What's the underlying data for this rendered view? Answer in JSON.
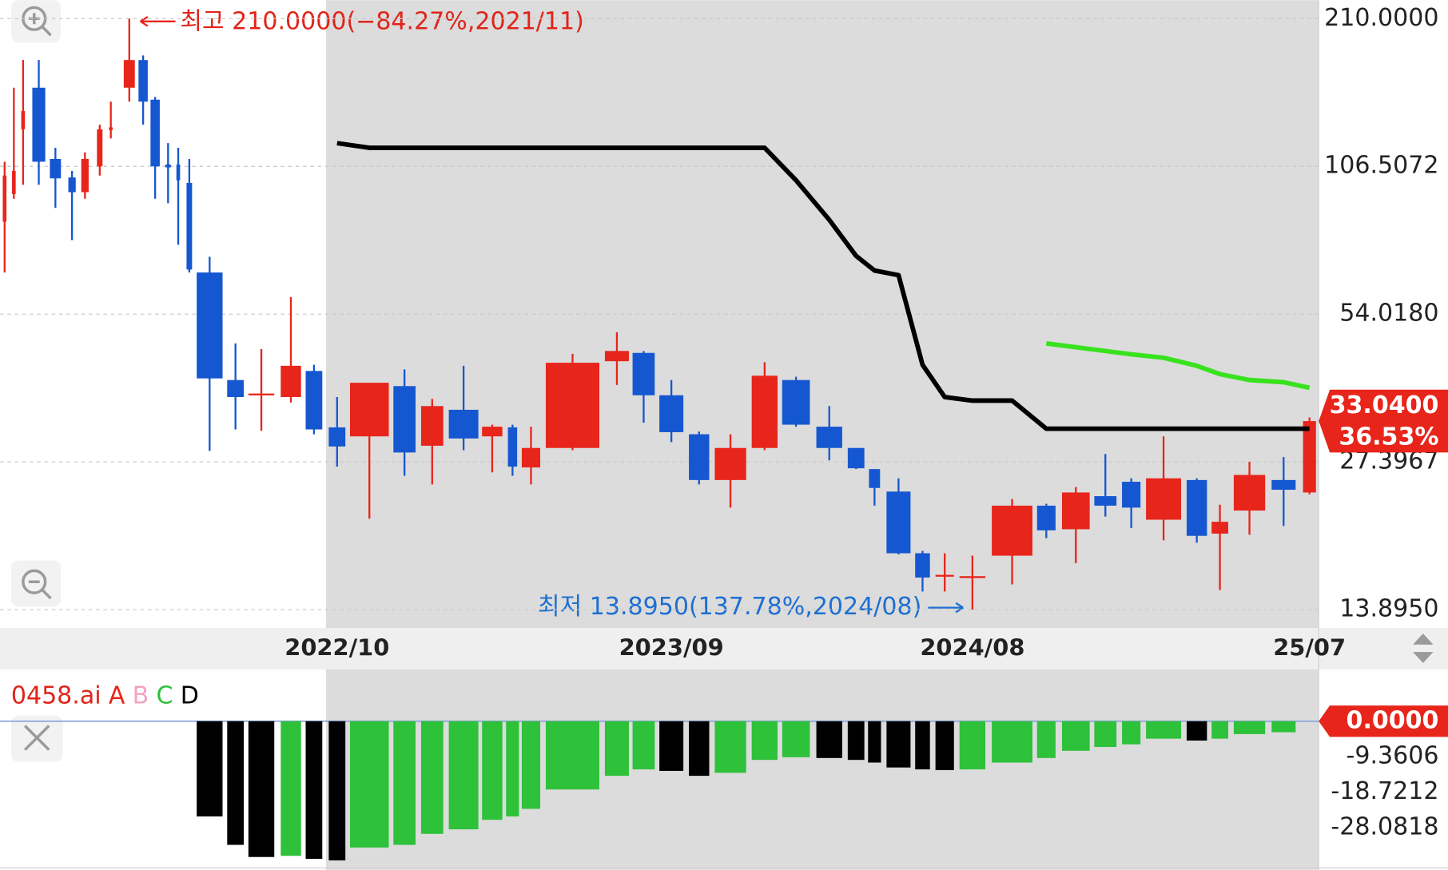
{
  "chart_data": [
    {
      "type": "candlestick",
      "categories": [
        null,
        null,
        null,
        null,
        null,
        null,
        null,
        null,
        null,
        null,
        null,
        null,
        null,
        null,
        null,
        null,
        null,
        null,
        null,
        null,
        "2022/10",
        null,
        null,
        null,
        null,
        null,
        null,
        null,
        null,
        null,
        null,
        "2023/09",
        null,
        null,
        null,
        null,
        null,
        null,
        null,
        null,
        null,
        null,
        "2024/08",
        null,
        null,
        null,
        null,
        null,
        null,
        null,
        null,
        null,
        null,
        "25/07"
      ],
      "open": [
        82.6,
        93.8,
        126.3,
        152.9,
        110.2,
        101.2,
        94.6,
        106.5,
        125.8,
        152.9,
        173.6,
        144.7,
        107.4,
        107.4,
        98.7,
        65.4,
        39.9,
        37.2,
        36.9,
        41.6,
        32.1,
        30.8,
        38.8,
        29.5,
        34.8,
        30.8,
        32.1,
        26.7,
        29.2,
        43.5,
        45.2,
        37.2,
        31.1,
        25.2,
        29.2,
        39.9,
        32.2,
        29.2,
        26.5,
        23.9,
        18.0,
        16.2,
        16.1,
        17.8,
        22.4,
        20.1,
        23.4,
        25.0,
        21.0,
        25.2,
        19.7,
        21.9,
        25.2,
        23.8
      ],
      "high": [
        108.8,
        152.9,
        173.6,
        173.6,
        116.0,
        104.3,
        113.6,
        129.0,
        143.4,
        210,
        177.3,
        146.5,
        118.5,
        116.0,
        110.2,
        70.3,
        47.2,
        46.0,
        58.4,
        42.8,
        36.9,
        39.4,
        41.9,
        36.6,
        42.6,
        32.5,
        32.5,
        32.2,
        45.0,
        49.7,
        45.6,
        39.9,
        31.5,
        31.1,
        43.3,
        40.5,
        35.4,
        29.2,
        26.5,
        25.4,
        18.2,
        18.0,
        17.8,
        23.1,
        22.6,
        24.4,
        28.4,
        25.4,
        30.8,
        25.4,
        22.5,
        27.4,
        28.0,
        33.6
      ],
      "low": [
        65.4,
        91.8,
        97.9,
        97.9,
        88.0,
        75.9,
        91.8,
        102.1,
        121.1,
        143.4,
        129.0,
        91.8,
        89.9,
        74.3,
        65.4,
        28.8,
        31.8,
        31.6,
        36.0,
        31.1,
        26.8,
        21.1,
        25.7,
        24.7,
        28.9,
        26.1,
        25.7,
        24.7,
        28.9,
        39.0,
        32.8,
        30.0,
        24.7,
        22.2,
        28.9,
        32.2,
        27.6,
        26.5,
        22.4,
        17.9,
        15.1,
        15.1,
        13.895,
        15.6,
        19.3,
        17.2,
        21.3,
        20.2,
        19.1,
        18.9,
        15.2,
        19.6,
        20.4,
        23.6
      ],
      "close": [
        102.1,
        104.3,
        137.4,
        108.8,
        100.8,
        94.6,
        110.2,
        126.3,
        127.4,
        173.6,
        143.4,
        106.5,
        106.0,
        99.9,
        66.3,
        40.2,
        36.9,
        37.5,
        42.6,
        31.8,
        29.4,
        39.4,
        28.6,
        35.4,
        30.5,
        32.2,
        26.8,
        29.2,
        43.2,
        45.6,
        37.2,
        31.4,
        25.2,
        29.2,
        40.7,
        32.5,
        29.2,
        26.6,
        24.3,
        18.0,
        16.1,
        16.3,
        16.2,
        22.4,
        20.0,
        23.8,
        22.4,
        22.2,
        25.4,
        19.5,
        20.8,
        25.8,
        24.1,
        33.04
      ],
      "up_color": "#e8251b",
      "down_color": "#1557d0",
      "overlays": [
        {
          "color": "#000000",
          "values": [
            null,
            null,
            null,
            null,
            null,
            null,
            null,
            null,
            null,
            null,
            null,
            null,
            null,
            null,
            null,
            null,
            null,
            null,
            null,
            null,
            118.5,
            116.0,
            116.0,
            116.0,
            116.0,
            116.0,
            116.0,
            116.0,
            116.0,
            116.0,
            116.0,
            116.0,
            116.0,
            116.0,
            116.0,
            99.9,
            83.3,
            70.6,
            66.0,
            64.6,
            42.8,
            36.9,
            36.3,
            36.3,
            31.9,
            31.9,
            31.9,
            31.9,
            31.9,
            31.9,
            31.9,
            31.9,
            31.9,
            31.9
          ]
        },
        {
          "color": "#39e21e",
          "values": [
            null,
            null,
            null,
            null,
            null,
            null,
            null,
            null,
            null,
            null,
            null,
            null,
            null,
            null,
            null,
            null,
            null,
            null,
            null,
            null,
            null,
            null,
            null,
            null,
            null,
            null,
            null,
            null,
            null,
            null,
            null,
            null,
            null,
            null,
            null,
            null,
            null,
            null,
            null,
            null,
            null,
            null,
            null,
            null,
            47.2,
            46.4,
            45.6,
            44.9,
            44.2,
            42.6,
            41.0,
            39.9,
            39.5,
            38.5
          ]
        }
      ],
      "ylim": [
        12.77,
        228.6
      ],
      "log_scale": true,
      "grid": true,
      "yticks": [
        {
          "value": 210,
          "label": "210.0000"
        },
        {
          "value": 106.5072,
          "label": "106.5072"
        },
        {
          "value": 54.018,
          "label": "54.0180"
        },
        {
          "value": 27.3967,
          "label": "27.3967"
        },
        {
          "value": 13.895,
          "label": "13.8950"
        }
      ],
      "high_label": "최고 210.0000(−84.27%,2021/11)",
      "low_label": "최저 13.8950(137.78%,2024/08)",
      "last_price": {
        "value": 33.04,
        "label": "33.0400"
      },
      "change_label": "36.53%"
    },
    {
      "type": "bar",
      "name": "0458.ai",
      "legend": [
        {
          "label": "A",
          "color": "#e8251b"
        },
        {
          "label": "B",
          "color": "#f4a3c4"
        },
        {
          "label": "C",
          "color": "#2ec13a"
        },
        {
          "label": "D",
          "color": "#000000"
        }
      ],
      "values": [
        null,
        null,
        null,
        null,
        null,
        null,
        null,
        null,
        null,
        null,
        null,
        null,
        null,
        null,
        null,
        -25.1,
        -32.6,
        -35.8,
        -35.5,
        -36.3,
        -36.7,
        -33.3,
        -32.6,
        -29.7,
        -28.5,
        -26.0,
        -25.1,
        -23.1,
        -18.0,
        -14.4,
        -12.7,
        -13.1,
        -14.4,
        -13.6,
        -10.2,
        -9.5,
        -9.7,
        -10.2,
        -10.9,
        -12.2,
        -12.7,
        -12.9,
        -12.7,
        -10.9,
        -9.7,
        -7.8,
        -6.8,
        -6.1,
        -4.6,
        -5.1,
        -4.6,
        -3.4,
        -2.9,
        0
      ],
      "colors": [
        null,
        null,
        null,
        null,
        null,
        null,
        null,
        null,
        null,
        null,
        null,
        null,
        null,
        null,
        null,
        "#000000",
        "#000000",
        "#000000",
        "#2ec13a",
        "#000000",
        "#000000",
        "#2ec13a",
        "#2ec13a",
        "#2ec13a",
        "#2ec13a",
        "#2ec13a",
        "#2ec13a",
        "#2ec13a",
        "#2ec13a",
        "#2ec13a",
        "#2ec13a",
        "#000000",
        "#000000",
        "#2ec13a",
        "#2ec13a",
        "#2ec13a",
        "#000000",
        "#000000",
        "#000000",
        "#000000",
        "#000000",
        "#000000",
        "#2ec13a",
        "#2ec13a",
        "#2ec13a",
        "#2ec13a",
        "#2ec13a",
        "#2ec13a",
        "#2ec13a",
        "#000000",
        "#2ec13a",
        "#2ec13a",
        "#2ec13a",
        "#2ec13a"
      ],
      "ylim": [
        -38.7,
        11.2
      ],
      "yticks": [
        -9.3606,
        -18.7212,
        -28.0818
      ],
      "last_value": {
        "value": 0,
        "label": "0.0000"
      }
    }
  ]
}
